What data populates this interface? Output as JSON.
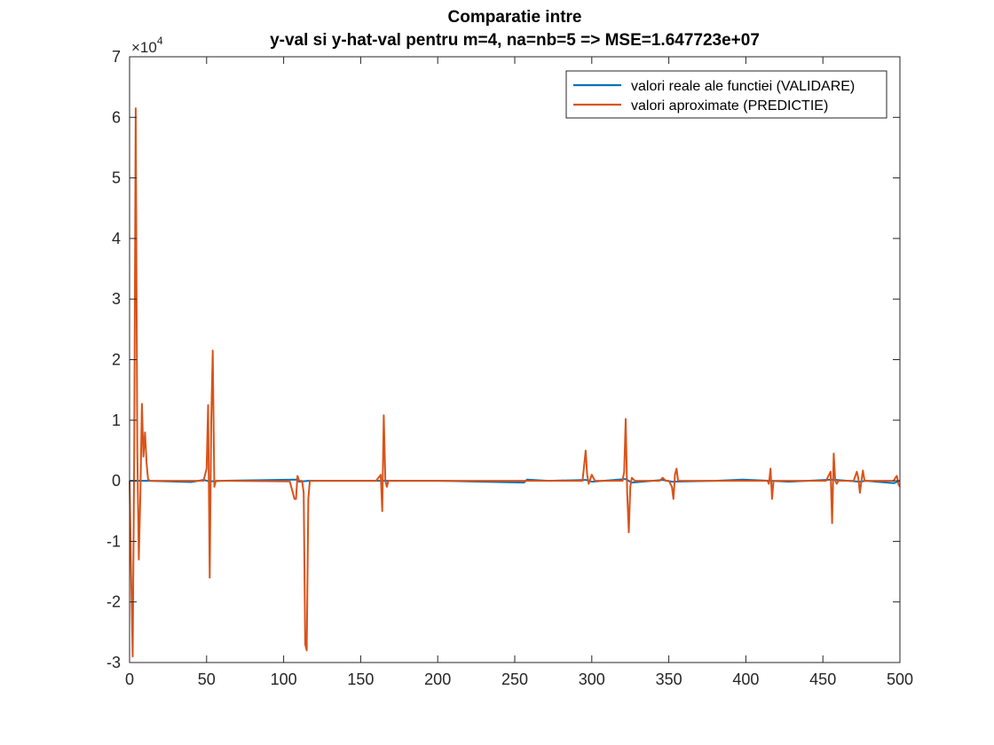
{
  "chart_data": {
    "type": "line",
    "title": [
      "Comparatie intre",
      "y-val si y-hat-val pentru m=4, na=nb=5 => MSE=1.647723e+07"
    ],
    "xlabel": "",
    "ylabel": "",
    "xlim": [
      0,
      500
    ],
    "ylim": [
      -30000,
      70000
    ],
    "y_exponent_label": "×10",
    "y_exponent_power": "4",
    "xticks": [
      0,
      50,
      100,
      150,
      200,
      250,
      300,
      350,
      400,
      450,
      500
    ],
    "yticks": [
      -3,
      -2,
      -1,
      0,
      1,
      2,
      3,
      4,
      5,
      6,
      7
    ],
    "grid": false,
    "legend_position": "top-right",
    "series": [
      {
        "name": "valori reale ale functiei (VALIDARE)",
        "color": "#0072BD",
        "x": [
          0,
          3,
          4,
          5,
          12,
          40,
          48,
          52,
          60,
          108,
          110,
          116,
          130,
          150,
          200,
          256,
          258,
          272,
          296,
          300,
          322,
          326,
          346,
          352,
          380,
          398,
          416,
          428,
          456,
          474,
          478,
          496,
          500
        ],
        "y": [
          0,
          0,
          0,
          0,
          0,
          -200,
          150,
          -100,
          0,
          200,
          -150,
          0,
          0,
          0,
          0,
          -300,
          200,
          0,
          150,
          -150,
          300,
          -300,
          150,
          -150,
          0,
          200,
          0,
          -150,
          200,
          -150,
          0,
          -400,
          0
        ]
      },
      {
        "name": "valori aproximate (PREDICTIE)",
        "color": "#D95319",
        "x": [
          0,
          1,
          2,
          3,
          4,
          5,
          6,
          7,
          8,
          9,
          10,
          11,
          12,
          13,
          14,
          16,
          40,
          48,
          50,
          51,
          52,
          53,
          54,
          55,
          56,
          60,
          104,
          106,
          107,
          108,
          109,
          110,
          112,
          113,
          114,
          115,
          116,
          117,
          118,
          130,
          160,
          163,
          164,
          165,
          166,
          167,
          168,
          170,
          292,
          294,
          296,
          297,
          298,
          300,
          302,
          303,
          320,
          321,
          322,
          323,
          324,
          325,
          326,
          328,
          330,
          344,
          346,
          348,
          350,
          352,
          353,
          354,
          355,
          356,
          412,
          414,
          415,
          416,
          417,
          418,
          420,
          452,
          454,
          455,
          456,
          457,
          458,
          459,
          460,
          470,
          472,
          473,
          474,
          475,
          476,
          477,
          478,
          496,
          497,
          498,
          499,
          500
        ],
        "y": [
          0,
          -15000,
          -29000,
          4000,
          61500,
          5000,
          -13000,
          -2000,
          12700,
          4000,
          8000,
          3000,
          300,
          0,
          0,
          0,
          0,
          0,
          2000,
          12500,
          -16000,
          10000,
          21500,
          -1000,
          0,
          0,
          -100,
          -2000,
          -3000,
          -3000,
          800,
          0,
          0,
          -2000,
          -27000,
          -28000,
          -3000,
          0,
          0,
          0,
          0,
          1000,
          -5000,
          10800,
          0,
          -1000,
          0,
          0,
          0,
          0,
          5000,
          1000,
          -500,
          1000,
          0,
          0,
          0,
          1500,
          10200,
          -2000,
          -8500,
          -1000,
          500,
          0,
          0,
          0,
          500,
          0,
          0,
          -1000,
          -3000,
          1000,
          2000,
          0,
          0,
          0,
          -500,
          2000,
          -3000,
          0,
          0,
          0,
          1000,
          1500,
          -7000,
          4500,
          0,
          -500,
          0,
          0,
          1500,
          500,
          -2000,
          0,
          1700,
          0,
          0,
          0,
          500,
          800,
          -500,
          -1000
        ]
      }
    ]
  }
}
